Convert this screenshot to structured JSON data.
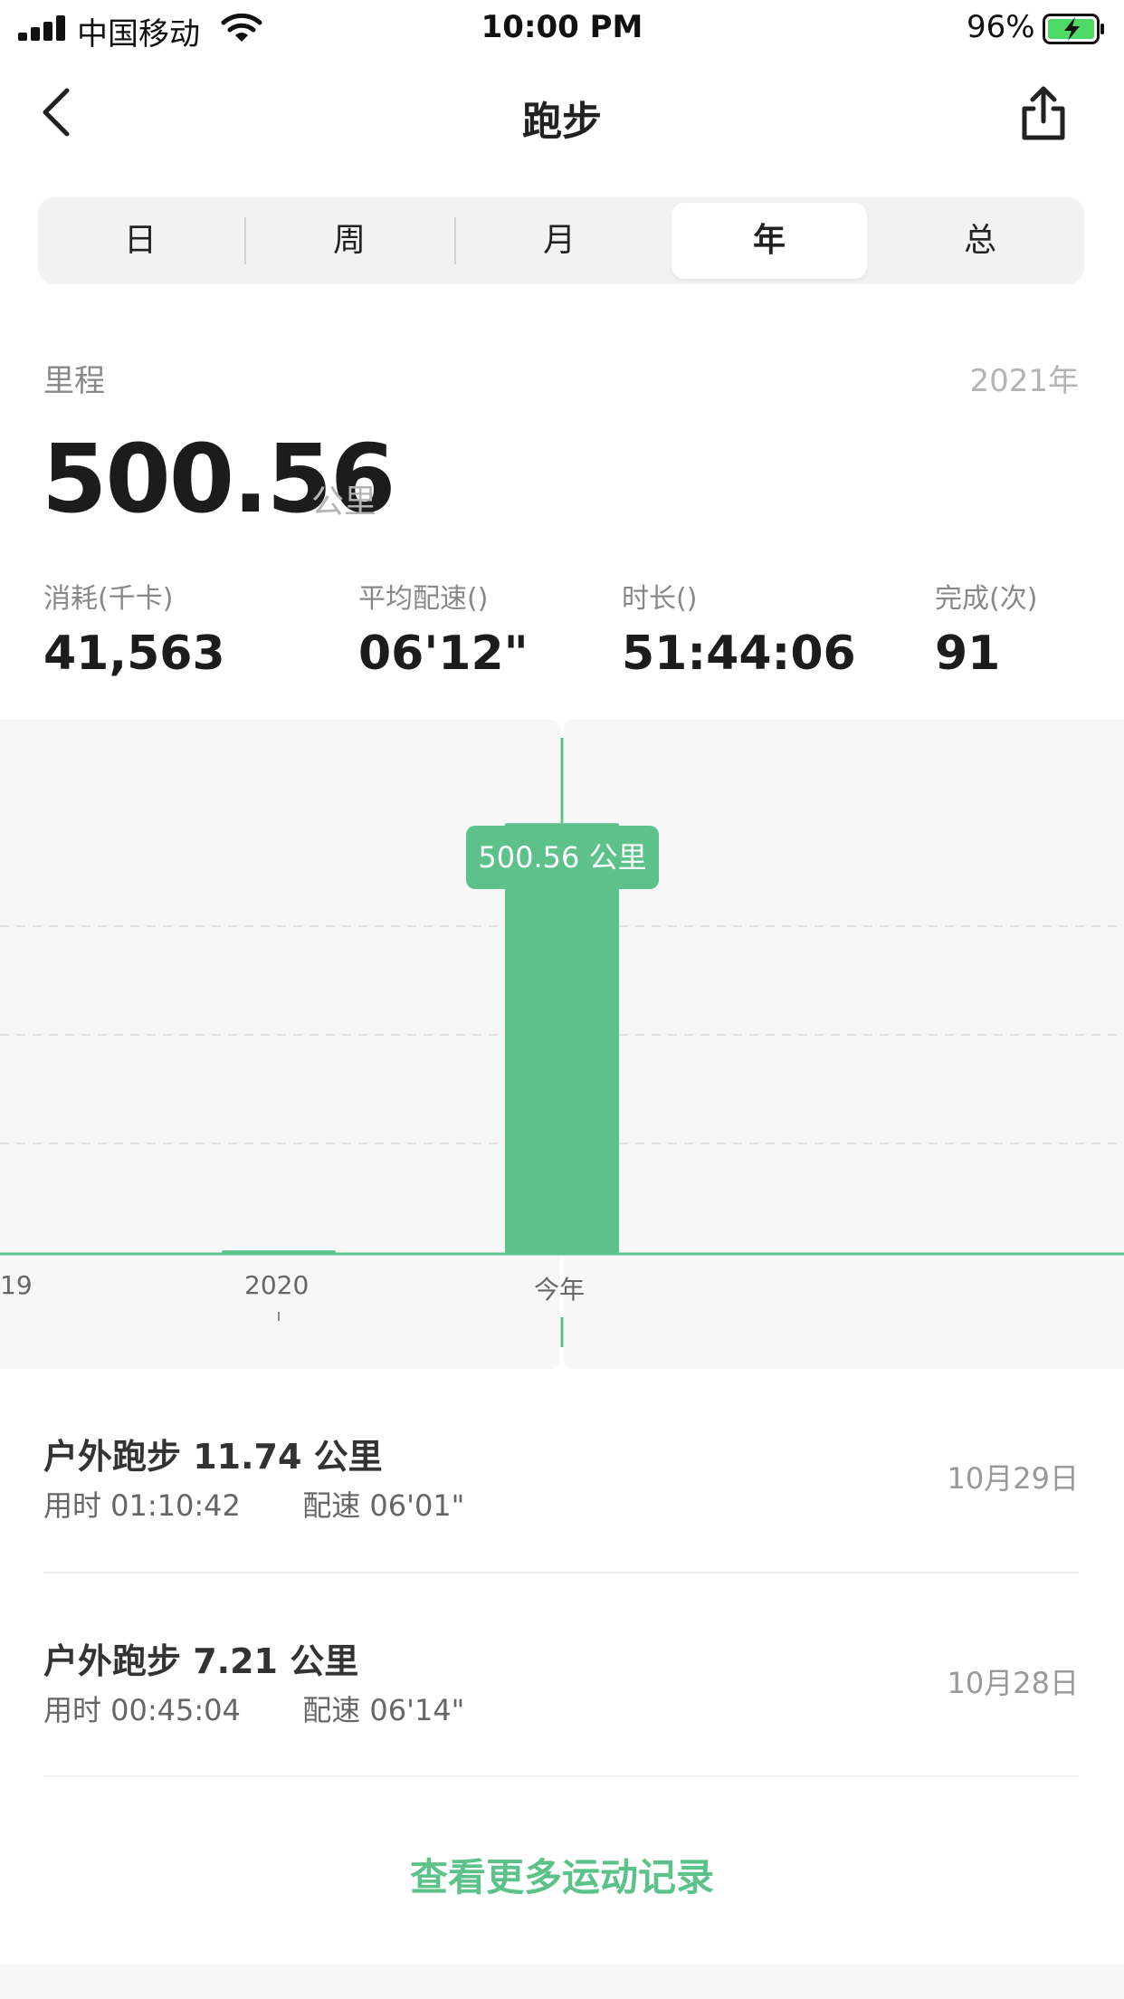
{
  "status_bar": {
    "carrier": "中国移动",
    "time": "10:00 PM",
    "battery": "96%"
  },
  "nav": {
    "title": "跑步",
    "back_icon": "chevron-left-icon",
    "share_icon": "share-icon"
  },
  "tabs": [
    {
      "label": "日",
      "active": false
    },
    {
      "label": "周",
      "active": false
    },
    {
      "label": "月",
      "active": false
    },
    {
      "label": "年",
      "active": true
    },
    {
      "label": "总",
      "active": false
    }
  ],
  "summary": {
    "label": "里程",
    "year": "2021年",
    "distance": "500.56",
    "unit": "公里"
  },
  "stats": [
    {
      "label": "消耗(千卡)",
      "value": "41,563"
    },
    {
      "label": "平均配速()",
      "value": "06'12\""
    },
    {
      "label": "时长()",
      "value": "51:44:06"
    },
    {
      "label": "完成(次)",
      "value": "91"
    }
  ],
  "chart_data": {
    "type": "bar",
    "categories": [
      "19",
      "2020",
      "今年"
    ],
    "values": [
      0,
      3,
      500.56
    ],
    "selected_index": 2,
    "tooltip": "500.56 公里",
    "ylim": [
      0,
      600
    ],
    "grid": true,
    "accent_color": "#5dc28a"
  },
  "records": [
    {
      "title": "户外跑步 11.74 公里",
      "duration": "用时 01:10:42",
      "pace": "配速 06'01\"",
      "date": "10月29日"
    },
    {
      "title": "户外跑步 7.21 公里",
      "duration": "用时 00:45:04",
      "pace": "配速 06'14\"",
      "date": "10月28日"
    }
  ],
  "more_link": "查看更多运动记录"
}
